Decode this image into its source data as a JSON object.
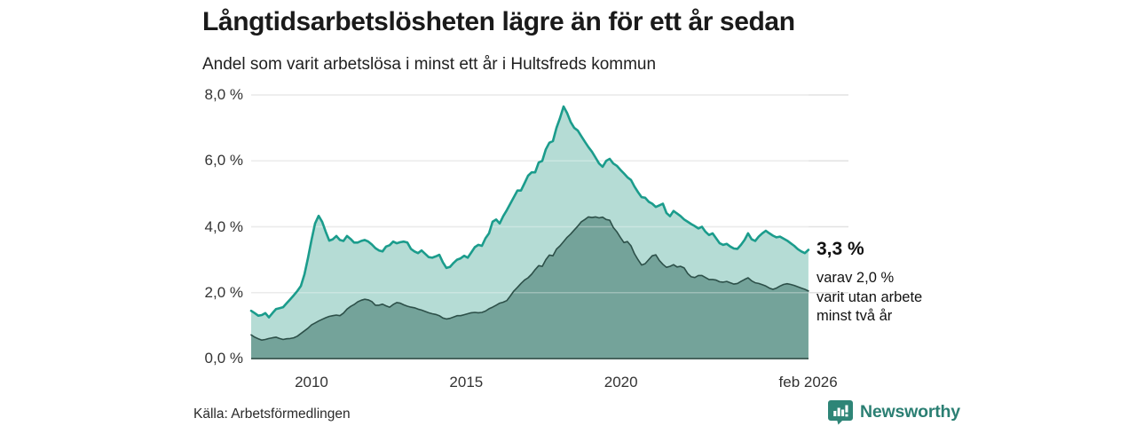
{
  "header": {
    "title": "Långtidsarbetslösheten lägre än för ett år sedan",
    "subtitle": "Andel som varit arbetslösa i minst ett år i Hultsfreds kommun"
  },
  "annotation": {
    "value": "3,3 %",
    "note_lines": [
      "varav 2,0 %",
      "varit utan arbete",
      "minst två år"
    ]
  },
  "footer": {
    "source": "Källa: Arbetsförmedlingen",
    "brand": "Newsworthy",
    "brand_icon": "bar-chart-pin-icon"
  },
  "colors": {
    "accent_teal_line": "#1b9c8c",
    "light_fill": "#b5dcd5",
    "dark_fill": "#74a39a",
    "dark_line": "#2d5049",
    "gridline": "#e2e2e2",
    "axis_line": "#47645d",
    "brand_teal": "#2e8577",
    "brand_text": "#2b7f73"
  },
  "chart_data": {
    "type": "area",
    "title": "Långtidsarbetslösheten lägre än för ett år sedan",
    "subtitle": "Andel som varit arbetslösa i minst ett år i Hultsfreds kommun",
    "unit": "%",
    "x_start": 2008.05,
    "x_step": 0.1147,
    "xlim": [
      2008.05,
      2026.06
    ],
    "ylim": [
      0,
      8
    ],
    "grid": "horizontal",
    "x_ticks": [
      {
        "t": 2010.0,
        "label": "2010"
      },
      {
        "t": 2015.0,
        "label": "2015"
      },
      {
        "t": 2020.0,
        "label": "2020"
      },
      {
        "t": 2026.05,
        "label": "feb 2026"
      }
    ],
    "y_ticks": [
      {
        "v": 0,
        "label": "0,0 %"
      },
      {
        "v": 2,
        "label": "2,0 %"
      },
      {
        "v": 4,
        "label": "4,0 %"
      },
      {
        "v": 6,
        "label": "6,0 %"
      },
      {
        "v": 8,
        "label": "8,0 %"
      }
    ],
    "end_labels": {
      "series1": "3,3 %",
      "series2": "2,0 %"
    },
    "series": [
      {
        "name": "Arbetslösa minst ett år",
        "line_color": "#1b9c8c",
        "fill_color": "#b5dcd5",
        "line_width": 2.6,
        "values": [
          1.45,
          1.38,
          1.3,
          1.32,
          1.38,
          1.25,
          1.38,
          1.5,
          1.53,
          1.56,
          1.68,
          1.8,
          1.92,
          2.05,
          2.2,
          2.55,
          3.05,
          3.6,
          4.1,
          4.33,
          4.15,
          3.85,
          3.58,
          3.62,
          3.72,
          3.6,
          3.57,
          3.72,
          3.63,
          3.52,
          3.52,
          3.57,
          3.6,
          3.55,
          3.46,
          3.35,
          3.28,
          3.25,
          3.4,
          3.44,
          3.55,
          3.5,
          3.53,
          3.55,
          3.52,
          3.33,
          3.25,
          3.2,
          3.28,
          3.18,
          3.08,
          3.06,
          3.1,
          3.15,
          2.92,
          2.75,
          2.78,
          2.9,
          3.0,
          3.04,
          3.12,
          3.06,
          3.22,
          3.38,
          3.45,
          3.42,
          3.65,
          3.8,
          4.15,
          4.22,
          4.1,
          4.32,
          4.5,
          4.7,
          4.9,
          5.1,
          5.1,
          5.32,
          5.55,
          5.65,
          5.65,
          5.95,
          6.0,
          6.35,
          6.55,
          6.6,
          7.0,
          7.3,
          7.65,
          7.45,
          7.18,
          7.0,
          6.92,
          6.75,
          6.58,
          6.42,
          6.28,
          6.1,
          5.92,
          5.82,
          6.0,
          6.06,
          5.92,
          5.85,
          5.73,
          5.62,
          5.5,
          5.42,
          5.22,
          5.05,
          4.9,
          4.88,
          4.76,
          4.7,
          4.6,
          4.65,
          4.7,
          4.42,
          4.32,
          4.48,
          4.4,
          4.32,
          4.22,
          4.15,
          4.08,
          4.02,
          3.95,
          4.0,
          3.85,
          3.75,
          3.8,
          3.65,
          3.5,
          3.45,
          3.48,
          3.4,
          3.34,
          3.33,
          3.45,
          3.6,
          3.8,
          3.62,
          3.57,
          3.7,
          3.8,
          3.88,
          3.8,
          3.73,
          3.68,
          3.7,
          3.64,
          3.58,
          3.5,
          3.42,
          3.32,
          3.25,
          3.2,
          3.3
        ]
      },
      {
        "name": "Utan arbete minst två år",
        "line_color": "#2d5049",
        "fill_color": "#74a39a",
        "line_width": 1.6,
        "values": [
          0.72,
          0.65,
          0.6,
          0.56,
          0.58,
          0.61,
          0.63,
          0.65,
          0.61,
          0.58,
          0.6,
          0.61,
          0.63,
          0.68,
          0.76,
          0.84,
          0.92,
          1.02,
          1.08,
          1.14,
          1.19,
          1.24,
          1.28,
          1.3,
          1.32,
          1.3,
          1.38,
          1.5,
          1.58,
          1.64,
          1.72,
          1.77,
          1.8,
          1.78,
          1.73,
          1.62,
          1.62,
          1.65,
          1.6,
          1.56,
          1.64,
          1.7,
          1.68,
          1.63,
          1.59,
          1.56,
          1.54,
          1.5,
          1.47,
          1.43,
          1.39,
          1.36,
          1.34,
          1.3,
          1.23,
          1.2,
          1.22,
          1.26,
          1.3,
          1.3,
          1.33,
          1.36,
          1.39,
          1.4,
          1.39,
          1.4,
          1.44,
          1.51,
          1.56,
          1.62,
          1.68,
          1.71,
          1.76,
          1.9,
          2.05,
          2.16,
          2.28,
          2.38,
          2.45,
          2.56,
          2.7,
          2.82,
          2.8,
          3.0,
          3.14,
          3.12,
          3.32,
          3.42,
          3.55,
          3.68,
          3.78,
          3.9,
          4.02,
          4.15,
          4.22,
          4.3,
          4.28,
          4.3,
          4.27,
          4.29,
          4.22,
          4.2,
          3.98,
          3.85,
          3.68,
          3.52,
          3.55,
          3.42,
          3.18,
          3.0,
          2.84,
          2.88,
          3.0,
          3.12,
          3.15,
          2.98,
          2.86,
          2.77,
          2.8,
          2.85,
          2.78,
          2.8,
          2.75,
          2.58,
          2.48,
          2.46,
          2.52,
          2.52,
          2.46,
          2.4,
          2.4,
          2.38,
          2.33,
          2.32,
          2.34,
          2.3,
          2.26,
          2.28,
          2.34,
          2.4,
          2.45,
          2.36,
          2.3,
          2.28,
          2.24,
          2.2,
          2.14,
          2.1,
          2.14,
          2.2,
          2.25,
          2.27,
          2.25,
          2.22,
          2.18,
          2.14,
          2.1,
          2.05
        ]
      }
    ]
  }
}
